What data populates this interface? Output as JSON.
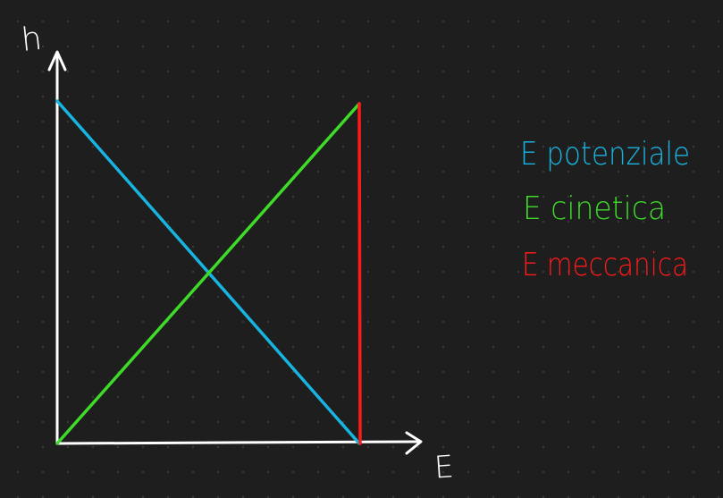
{
  "axes": {
    "y_label": "h",
    "x_label": "E",
    "axis_color": "#ffffff"
  },
  "legend": {
    "items": [
      {
        "text": "E potenziale",
        "color": "#18b4e0"
      },
      {
        "text": "E cinetica",
        "color": "#3fdb29"
      },
      {
        "text": "E meccanica",
        "color": "#ff1a1a"
      }
    ]
  },
  "lines": {
    "potenziale_color": "#18b4e0",
    "cinetica_color": "#3fdb29",
    "meccanica_color": "#ff1a1a"
  }
}
